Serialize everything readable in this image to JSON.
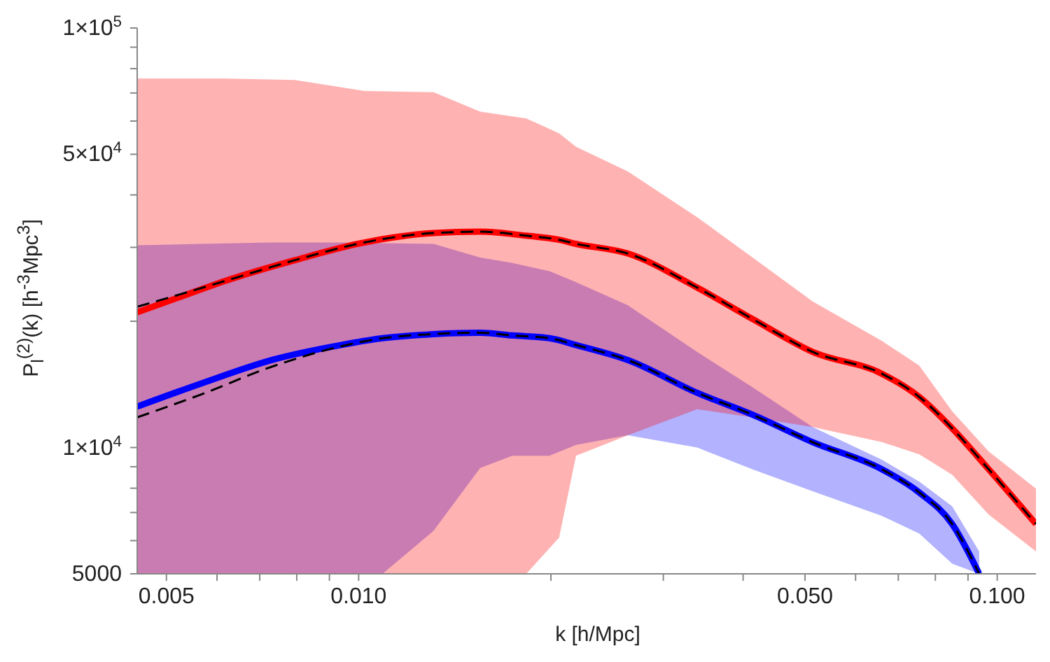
{
  "chart_data": {
    "type": "line",
    "xlabel": "k [h/Mpc]",
    "ylabel": "P$_{l}$$^{(2)}$(k) [h$^{-3}$Mpc$^{3}$]",
    "log": "xy",
    "grid": false,
    "legend": false,
    "marker": "none",
    "xlim": [
      0.0045,
      0.115
    ],
    "ylim": [
      5000,
      100000
    ],
    "xticks": [
      0.005,
      {
        "value": 0.006,
        "label": null
      },
      {
        "value": 0.007,
        "label": null
      },
      {
        "value": 0.008,
        "label": null
      },
      {
        "value": 0.009,
        "label": null
      },
      {
        "value": 0.01,
        "label": "0.010"
      },
      {
        "value": 0.02,
        "label": null
      },
      {
        "value": 0.03,
        "label": null
      },
      {
        "value": 0.04,
        "label": null
      },
      {
        "value": 0.05,
        "label": "0.050"
      },
      {
        "value": 0.06,
        "label": null
      },
      {
        "value": 0.07,
        "label": null
      },
      {
        "value": 0.08,
        "label": null
      },
      {
        "value": 0.09,
        "label": null
      },
      {
        "value": 0.1,
        "label": "0.100"
      }
    ],
    "yticks": [
      5000,
      {
        "value": 6000,
        "label": null
      },
      {
        "value": 7000,
        "label": null
      },
      {
        "value": 8000,
        "label": null
      },
      {
        "value": 9000,
        "label": null
      },
      {
        "value": 10000,
        "label": "1×10$^{4}$"
      },
      {
        "value": 20000,
        "label": null
      },
      {
        "value": 30000,
        "label": null
      },
      {
        "value": 40000,
        "label": null
      },
      {
        "value": 50000,
        "label": "5×10$^{4}$"
      },
      {
        "value": 60000,
        "label": null
      },
      {
        "value": 70000,
        "label": null
      },
      {
        "value": 80000,
        "label": null
      },
      {
        "value": 90000,
        "label": null
      },
      {
        "value": 100000,
        "label": "1×10$^{5}$"
      }
    ],
    "series": [
      {
        "color": "#0000ff",
        "x": [
          0.0045,
          0.00568,
          0.0073,
          0.00937,
          0.0109,
          0.0131,
          0.0155,
          0.0174,
          0.0199,
          0.0219,
          0.0264,
          0.0339,
          0.0414,
          0.0514,
          0.066,
          0.0755,
          0.085,
          0.0937
        ],
        "values": [
          12520,
          14230,
          16160,
          17550,
          18220,
          18640,
          18780,
          18500,
          18220,
          17550,
          16160,
          13500,
          11970,
          10300,
          8870,
          7810,
          6570,
          5000
        ],
        "lower": [
          5000,
          5000,
          5000,
          5000,
          5000,
          6330,
          8940,
          9560,
          9560,
          10150,
          10700,
          10000,
          8870,
          7870,
          6870,
          6235,
          5285,
          5000
        ],
        "upper": [
          30350,
          30580,
          30810,
          30810,
          30700,
          30580,
          28370,
          27530,
          26320,
          24780,
          21820,
          16900,
          13910,
          11190,
          9350,
          8290,
          7240,
          5655
        ]
      },
      {
        "color": "#ff0000",
        "x": [
          0.0045,
          0.00524,
          0.00619,
          0.00794,
          0.0102,
          0.0131,
          0.0155,
          0.0183,
          0.0206,
          0.0219,
          0.0264,
          0.0339,
          0.0414,
          0.0514,
          0.066,
          0.0755,
          0.085,
          0.097,
          0.115
        ],
        "values": [
          21010,
          22820,
          24970,
          27950,
          30810,
          32450,
          32700,
          31980,
          31270,
          30580,
          29000,
          24050,
          20240,
          16900,
          14990,
          13200,
          11110,
          8870,
          6570
        ],
        "lower": [
          5000,
          5000,
          5000,
          5000,
          5000,
          5000,
          5000,
          5000,
          6100,
          9560,
          10700,
          12340,
          11800,
          11190,
          10300,
          9630,
          8610,
          6920,
          5655
        ],
        "upper": [
          75800,
          75800,
          75800,
          75200,
          70800,
          70300,
          63200,
          60900,
          56100,
          52100,
          45500,
          35400,
          28370,
          22300,
          17950,
          15680,
          12200,
          9780,
          7980
        ]
      },
      {
        "color": "#000000",
        "line_style": "dashed",
        "x": [
          0.0045,
          0.00524,
          0.00619,
          0.00794,
          0.0102,
          0.0131,
          0.0155,
          0.0183,
          0.0206,
          0.0219,
          0.0264,
          0.0339,
          0.0414,
          0.0514,
          0.066,
          0.0755,
          0.085,
          0.097,
          0.115
        ],
        "values": [
          21650,
          23160,
          24970,
          27950,
          30810,
          32450,
          32700,
          31980,
          31270,
          30580,
          29000,
          24050,
          20240,
          16900,
          14990,
          13200,
          11110,
          8870,
          6570
        ]
      },
      {
        "color": "#000000",
        "line_style": "dashed",
        "x": [
          0.0045,
          0.00568,
          0.0073,
          0.00937,
          0.0109,
          0.0131,
          0.0155,
          0.0174,
          0.0199,
          0.0219,
          0.0264,
          0.0339,
          0.0414,
          0.0514,
          0.066,
          0.0755,
          0.085,
          0.0937
        ],
        "values": [
          11800,
          13400,
          15570,
          17420,
          18220,
          18640,
          18780,
          18500,
          18220,
          17550,
          16160,
          13500,
          11970,
          10300,
          8870,
          7810,
          6570,
          5000
        ]
      }
    ]
  }
}
